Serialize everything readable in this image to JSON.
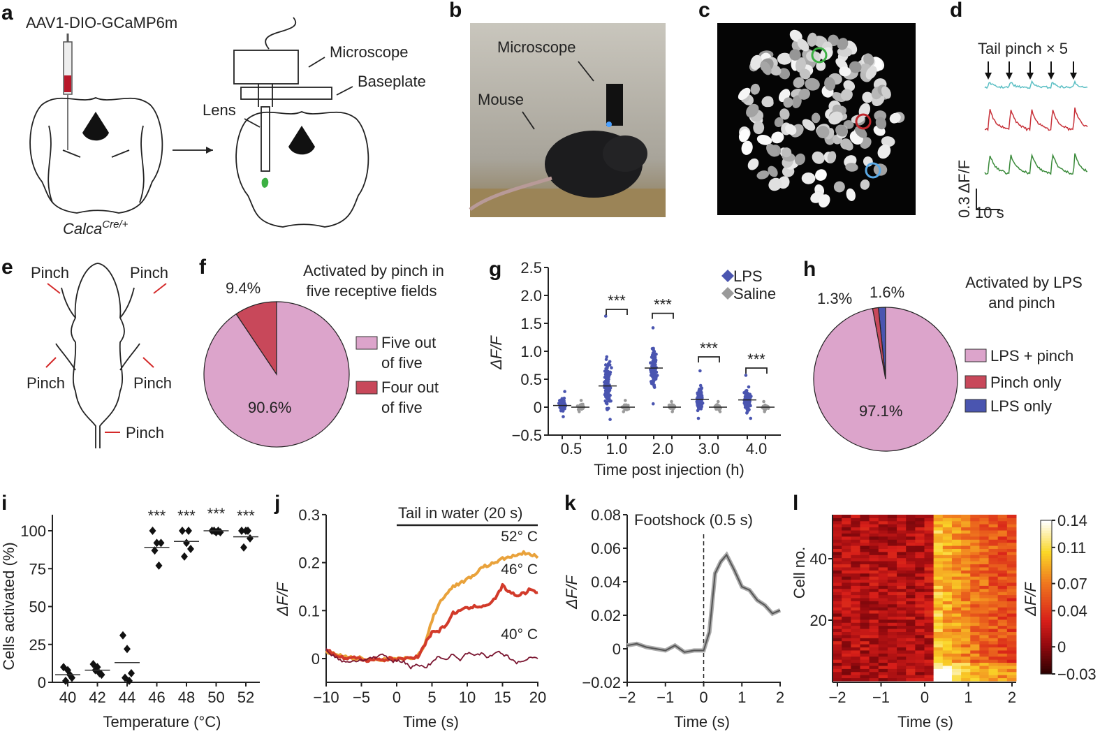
{
  "panel_labels": [
    "a",
    "b",
    "c",
    "d",
    "e",
    "f",
    "g",
    "h",
    "i",
    "j",
    "k",
    "l"
  ],
  "a": {
    "virus": "AAV1-DIO-GCaMP6m",
    "microscope": "Microscope",
    "baseplate": "Baseplate",
    "lens": "Lens",
    "genotype": "Calca",
    "genotype_sup": "Cre/+"
  },
  "b": {
    "microscope": "Microscope",
    "mouse": "Mouse"
  },
  "c": {
    "roi_colors": [
      "#3cb043",
      "#c0272d",
      "#5aa9e6"
    ]
  },
  "d": {
    "title": "Tail pinch × 5",
    "scale_y": "0.3 ΔF/F",
    "scale_x": "10 s",
    "trace_colors": [
      "#5bbfc4",
      "#c8323a",
      "#3a8a3a"
    ]
  },
  "e": {
    "labels": [
      "Pinch",
      "Pinch",
      "Pinch",
      "Pinch",
      "Pinch"
    ]
  },
  "colors": {
    "pink": "#dca4cb",
    "red": "#c8485a",
    "blue": "#4a55b0",
    "grey": "#9a9a9a",
    "orange": "#e9a23b",
    "red_line": "#d23a2a",
    "dark_red": "#7a1530"
  },
  "chart_data": [
    {
      "panel": "f",
      "type": "pie",
      "title": "Activated by pinch in five receptive fields",
      "slices": [
        {
          "name": "Five out of five",
          "value": 90.6,
          "label": "90.6%",
          "color": "#dca4cb"
        },
        {
          "name": "Four out of five",
          "value": 9.4,
          "label": "9.4%",
          "color": "#c8485a"
        }
      ],
      "legend_lines": [
        [
          "Five out",
          "of five"
        ],
        [
          "Four out",
          "of five"
        ]
      ],
      "legend": "right"
    },
    {
      "panel": "g",
      "type": "scatter",
      "xlabel": "Time post injection (h)",
      "ylabel": "ΔF/F",
      "categories": [
        "0.5",
        "1.0",
        "2.0",
        "3.0",
        "4.0"
      ],
      "ylim": [
        -0.5,
        2.5
      ],
      "yticks": [
        "2.5",
        "2.0",
        "1.5",
        "1.0",
        "0.5",
        "0",
        "−0.5"
      ],
      "series": [
        {
          "name": "LPS",
          "color": "#4a55b0",
          "medians": [
            0.03,
            0.38,
            0.7,
            0.14,
            0.13
          ],
          "min": [
            -0.17,
            -0.22,
            0.06,
            -0.2,
            -0.2
          ],
          "max": [
            0.28,
            1.63,
            1.42,
            0.65,
            0.57
          ]
        },
        {
          "name": "Saline",
          "color": "#9a9a9a",
          "medians": [
            0,
            0,
            0,
            0,
            0
          ],
          "min": [
            -0.08,
            -0.08,
            -0.08,
            -0.08,
            -0.08
          ],
          "max": [
            0.12,
            0.12,
            0.1,
            0.1,
            0.1
          ]
        }
      ],
      "significance": [
        "",
        "***",
        "***",
        "***",
        "***"
      ],
      "legend": "top-right"
    },
    {
      "panel": "h",
      "type": "pie",
      "title": "Activated by LPS and pinch",
      "slices": [
        {
          "name": "LPS + pinch",
          "value": 97.1,
          "label": "97.1%",
          "color": "#dca4cb"
        },
        {
          "name": "Pinch only",
          "value": 1.3,
          "label": "1.3%",
          "color": "#c8485a"
        },
        {
          "name": "LPS only",
          "value": 1.6,
          "label": "1.6%",
          "color": "#4a55b0"
        }
      ],
      "title_lines": [
        "Activated by LPS",
        "and pinch"
      ],
      "legend": "right"
    },
    {
      "panel": "i",
      "type": "scatter",
      "xlabel": "Temperature (°C)",
      "ylabel": "Cells activated (%)",
      "categories": [
        "40",
        "42",
        "44",
        "46",
        "48",
        "50",
        "52"
      ],
      "ylim": [
        0,
        110
      ],
      "yticks": [
        "0",
        "25",
        "50",
        "75",
        "100"
      ],
      "points": [
        [
          10,
          8,
          3,
          1,
          5
        ],
        [
          12,
          10,
          5,
          8,
          6
        ],
        [
          31,
          22,
          6,
          3,
          1
        ],
        [
          100,
          92,
          92,
          87,
          77
        ],
        [
          100,
          92,
          88,
          83,
          100
        ],
        [
          100,
          99,
          99,
          100,
          100
        ],
        [
          100,
          100,
          95,
          89,
          100
        ]
      ],
      "means": [
        5,
        8,
        13,
        89,
        93,
        100,
        96
      ],
      "significance": [
        "",
        "",
        "",
        "***",
        "***",
        "***",
        "***"
      ]
    },
    {
      "panel": "j",
      "type": "line",
      "xlabel": "Time (s)",
      "ylabel": "ΔF/F",
      "xlim": [
        -10,
        20
      ],
      "ylim": [
        -0.05,
        0.3
      ],
      "xticks": [
        "−10",
        "−5",
        "0",
        "5",
        "10",
        "15",
        "20"
      ],
      "yticks": [
        "0",
        "0.1",
        "0.2",
        "0.3"
      ],
      "annotation": "Tail in water (20 s)",
      "x": [
        -10,
        -9,
        -8,
        -7,
        -6,
        -5,
        -4,
        -3,
        -2,
        -1,
        0,
        1,
        2,
        3,
        4,
        5,
        6,
        7,
        8,
        9,
        10,
        11,
        12,
        13,
        14,
        15,
        16,
        17,
        18,
        19,
        20
      ],
      "series": [
        {
          "name": "52° C",
          "color": "#e9a23b",
          "values": [
            0.015,
            0.01,
            0.008,
            0.004,
            0.0,
            0.002,
            -0.002,
            -0.004,
            -0.003,
            0.0,
            0.0,
            0.0,
            0.002,
            0.005,
            0.03,
            0.08,
            0.115,
            0.135,
            0.15,
            0.158,
            0.165,
            0.175,
            0.19,
            0.195,
            0.2,
            0.208,
            0.212,
            0.215,
            0.22,
            0.218,
            0.21
          ]
        },
        {
          "name": "46° C",
          "color": "#d23a2a",
          "values": [
            0.018,
            0.01,
            0.005,
            0.0,
            0.003,
            -0.002,
            -0.004,
            0.0,
            -0.003,
            0.0,
            -0.002,
            0.0,
            0.002,
            0.004,
            0.03,
            0.055,
            0.058,
            0.07,
            0.095,
            0.1,
            0.105,
            0.108,
            0.11,
            0.113,
            0.125,
            0.152,
            0.138,
            0.132,
            0.135,
            0.145,
            0.138
          ]
        },
        {
          "name": "40° C",
          "color": "#7a1530",
          "values": [
            0.02,
            0.005,
            -0.003,
            -0.008,
            -0.005,
            -0.003,
            0.0,
            0.002,
            0.012,
            -0.004,
            -0.006,
            -0.005,
            -0.02,
            -0.012,
            -0.018,
            -0.01,
            0.005,
            0.0,
            0.008,
            -0.005,
            0.012,
            0.005,
            0.01,
            0.002,
            0.015,
            0.01,
            0.002,
            -0.008,
            -0.005,
            0.003,
            0.0
          ]
        }
      ]
    },
    {
      "panel": "k",
      "type": "line",
      "xlabel": "Time (s)",
      "ylabel": "ΔF/F",
      "xlim": [
        -2,
        2
      ],
      "ylim": [
        -0.02,
        0.08
      ],
      "xticks": [
        "−2",
        "−1",
        "0",
        "1",
        "2"
      ],
      "yticks": [
        "0.08",
        "0.06",
        "0.04",
        "0.02",
        "0",
        "−0.02"
      ],
      "annotation": "Footshock (0.5 s)",
      "x": [
        -2,
        -1.75,
        -1.5,
        -1.25,
        -1,
        -0.75,
        -0.5,
        -0.25,
        0,
        0.15,
        0.3,
        0.45,
        0.6,
        0.8,
        1.0,
        1.2,
        1.4,
        1.6,
        1.8,
        2.0
      ],
      "values": [
        0.002,
        0.003,
        0.001,
        0.0,
        -0.001,
        0.002,
        -0.002,
        -0.001,
        -0.001,
        0.01,
        0.045,
        0.052,
        0.056,
        0.047,
        0.037,
        0.035,
        0.029,
        0.026,
        0.021,
        0.023
      ],
      "color": "#555555"
    },
    {
      "panel": "l",
      "type": "heatmap",
      "xlabel": "Time (s)",
      "ylabel": "Cell no.",
      "colorbar_label": "ΔF/F",
      "xticks": [
        "−2",
        "−1",
        "0",
        "1",
        "2"
      ],
      "yticks": [
        "20",
        "40"
      ],
      "colorbar_ticks": [
        "0.14",
        "0.11",
        "0.07",
        "0.04",
        "0",
        "−0.03"
      ],
      "color_range": [
        -0.03,
        0.14
      ]
    }
  ]
}
